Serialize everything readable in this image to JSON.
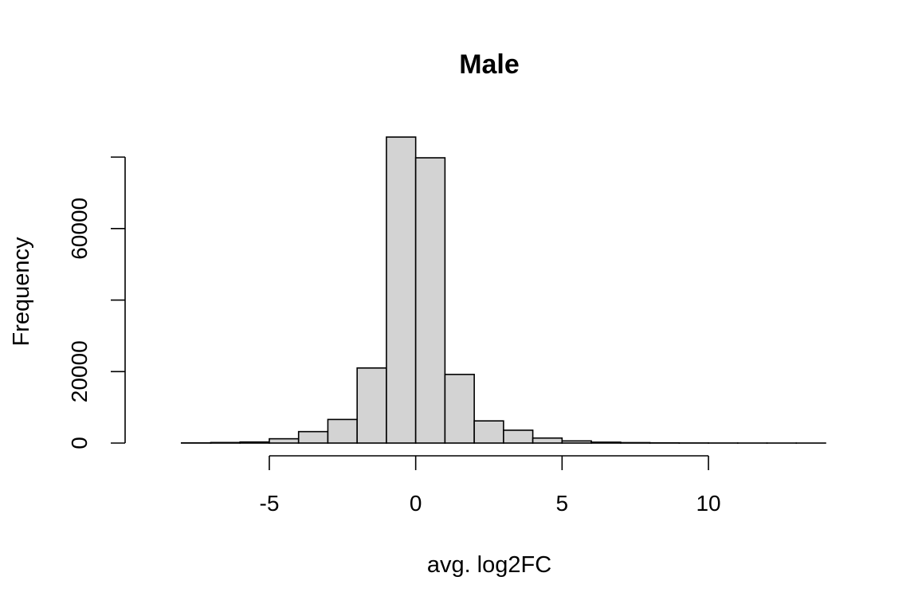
{
  "chart_data": {
    "type": "bar",
    "title": "Male",
    "xlabel": "avg. log2FC",
    "ylabel": "Frequency",
    "bin_edges": [
      -9,
      -8,
      -7,
      -6,
      -5,
      -4,
      -3,
      -2,
      -1,
      0,
      1,
      2,
      3,
      4,
      5,
      6,
      7,
      8,
      9,
      10,
      11,
      12,
      13,
      14
    ],
    "values": [
      0,
      50,
      150,
      300,
      1200,
      3200,
      6600,
      21000,
      85600,
      79800,
      19200,
      6200,
      3600,
      1400,
      600,
      250,
      120,
      60,
      30,
      15,
      8,
      4,
      2
    ],
    "xlim": [
      -9,
      14
    ],
    "ylim": [
      0,
      85600
    ],
    "x_ticks": [
      -5,
      0,
      5,
      10
    ],
    "x_tick_labels": [
      "-5",
      "0",
      "5",
      "10"
    ],
    "y_ticks": [
      0,
      20000,
      40000,
      60000,
      80000
    ],
    "y_tick_labels": [
      "0",
      "20000",
      "",
      "60000",
      ""
    ],
    "grid": false,
    "legend": "none"
  }
}
